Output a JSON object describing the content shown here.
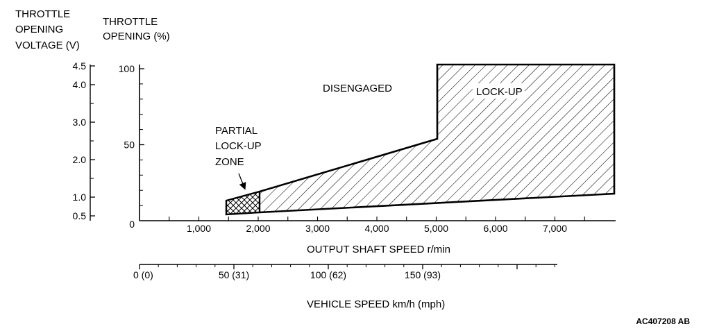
{
  "voltage_axis": {
    "title_lines": [
      "THROTTLE",
      "OPENING",
      "VOLTAGE (V)"
    ],
    "ticks": [
      {
        "label": "4.5",
        "value": 4.5
      },
      {
        "label": "4.0",
        "value": 4.0
      },
      {
        "label": "3.0",
        "value": 3.0
      },
      {
        "label": "2.0",
        "value": 2.0
      },
      {
        "label": "1.0",
        "value": 1.0
      },
      {
        "label": "0.5",
        "value": 0.5
      }
    ]
  },
  "opening_axis": {
    "title_lines": [
      "THROTTLE",
      "OPENING (%)"
    ],
    "ticks": [
      {
        "label": "100",
        "value": 100
      },
      {
        "label": "50",
        "value": 50
      },
      {
        "label": "0",
        "value": 0
      }
    ]
  },
  "shaft_axis": {
    "title": "OUTPUT SHAFT SPEED r/min",
    "ticks": [
      {
        "label": "1,000",
        "value": 1000
      },
      {
        "label": "2,000",
        "value": 2000
      },
      {
        "label": "3,000",
        "value": 3000
      },
      {
        "label": "4,000",
        "value": 4000
      },
      {
        "label": "5,000",
        "value": 5000
      },
      {
        "label": "6,000",
        "value": 6000
      },
      {
        "label": "7,000",
        "value": 7000
      }
    ]
  },
  "vehicle_axis": {
    "title": "VEHICLE SPEED km/h (mph)",
    "ticks": [
      {
        "label": "0 (0)",
        "value": 0
      },
      {
        "label": "50 (31)",
        "value": 50
      },
      {
        "label": "100 (62)",
        "value": 100
      },
      {
        "label": "150 (93)",
        "value": 150
      }
    ]
  },
  "regions": {
    "disengaged": "DISENGAGED",
    "lockup": "LOCK-UP",
    "partial_lines": [
      "PARTIAL",
      "LOCK-UP",
      "ZONE"
    ]
  },
  "figure_code": "AC407208 AB"
}
